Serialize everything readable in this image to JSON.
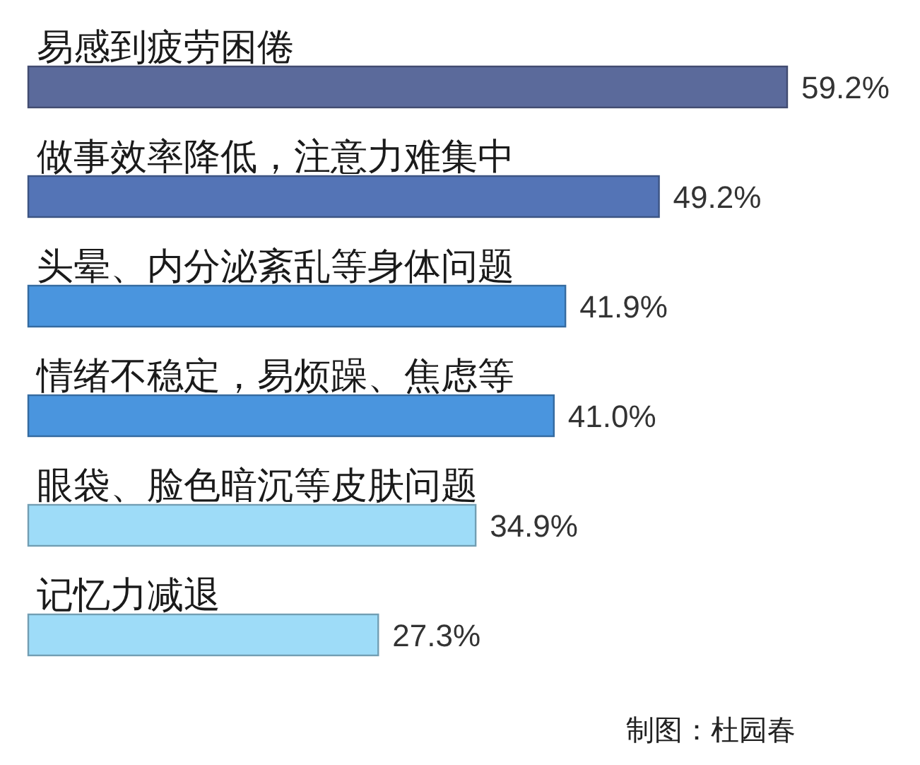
{
  "chart_data": {
    "type": "bar",
    "orientation": "horizontal",
    "categories": [
      "易感到疲劳困倦",
      "做事效率降低，注意力难集中",
      "头晕、内分泌紊乱等身体问题",
      "情绪不稳定，易烦躁、焦虑等",
      "眼袋、脸色暗沉等皮肤问题",
      "记忆力减退"
    ],
    "values": [
      59.2,
      49.2,
      41.9,
      41.0,
      34.9,
      27.3
    ],
    "value_labels": [
      "59.2%",
      "49.2%",
      "41.9%",
      "41.0%",
      "34.9%",
      "27.3%"
    ],
    "colors": [
      "#5b6a9b",
      "#5474b6",
      "#4a95de",
      "#4a95de",
      "#9edcf8",
      "#9edcf8"
    ],
    "annotations": [
      "制图：杜园春"
    ]
  }
}
